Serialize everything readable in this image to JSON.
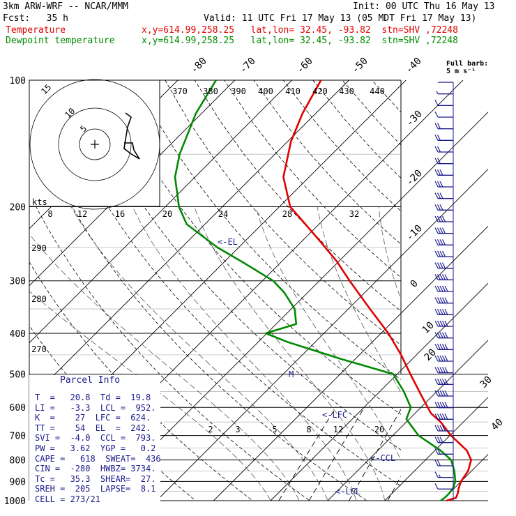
{
  "header": {
    "model": "3km ARW-WRF -- NCAR/MMM",
    "init": "Init: 00 UTC Thu 16 May 13",
    "fcst": "Fcst:   35 h",
    "valid": "Valid: 11 UTC Fri 17 May 13 (05 MDT Fri 17 May 13)",
    "temp_label": "Temperature",
    "temp_info": "x,y=614.99,258.25   lat,lon= 32.45, -93.82  stn=SHV ,72248",
    "dew_label": "Dewpoint temperature",
    "dew_info": "x,y=614.99,258.25   lat,lon= 32.45, -93.82  stn=SHV ,72248"
  },
  "parcel_info": {
    "title": "Parcel Info",
    "rows": [
      "T  =   20.8  Td =  19.8",
      "LI =   -3.3  LCL =  952.",
      "K  =    27  LFC =  624.",
      "TT =    54  EL  =  242.",
      "SVI =  -4.0  CCL =  793.",
      "PW =   3.62  YGP =   0.2",
      "CAPE =   618  SWEAT=  436",
      "CIN =  -280  HWBZ= 3734.",
      "Tc =   35.3  SHEAR=  27.",
      "SREH =  205  LAPSE=  8.1",
      "CELL = 273/21"
    ]
  },
  "barb_legend": "Full barb:\n5 m s⁻¹",
  "hodograph": {
    "units": "kts",
    "ring_labels": [
      "5",
      "10",
      "15"
    ],
    "speed_labels": [
      "8",
      "12",
      "16",
      "20",
      "24",
      "28",
      "32"
    ]
  },
  "chart_data": {
    "type": "skew-t",
    "pressure_levels": [
      100,
      200,
      300,
      400,
      500,
      600,
      700,
      800,
      900,
      1000
    ],
    "isotherm_labels": [
      "-80",
      "-70",
      "-60",
      "-50",
      "-40",
      "-30",
      "-20",
      "-10",
      "0",
      "10",
      "20",
      "30",
      "40"
    ],
    "isotherm_values": [
      -80,
      -70,
      -60,
      -50,
      -40,
      -30,
      -20,
      -10,
      0,
      10,
      20,
      30,
      40
    ],
    "theta_labels": [
      "370",
      "380",
      "390",
      "400",
      "410",
      "420",
      "430",
      "440",
      "290",
      "280",
      "270"
    ],
    "mixing_ratio_labels": [
      "2",
      "3",
      "5",
      "8",
      "12",
      "20"
    ],
    "annotations": {
      "el": "<-EL",
      "lfc": "<-LFC",
      "ccl": "<-CCL",
      "lcl": "<-LCL",
      "mark": "M"
    },
    "series": [
      {
        "name": "Temperature",
        "color": "#e00000",
        "p": [
          1000,
          985,
          960,
          935,
          900,
          850,
          800,
          760,
          700,
          650,
          620,
          560,
          500,
          450,
          400,
          350,
          300,
          270,
          240,
          220,
          200,
          170,
          140,
          120,
          100
        ],
        "t": [
          20.8,
          22.0,
          21.5,
          20.8,
          20.0,
          19.4,
          18.0,
          15.6,
          10.2,
          6.0,
          2.8,
          -2.2,
          -7.7,
          -12.7,
          -18.7,
          -26.2,
          -34.7,
          -40.3,
          -47.2,
          -52.4,
          -58.1,
          -64.5,
          -69.4,
          -72.3,
          -74.9
        ]
      },
      {
        "name": "Dewpoint temperature",
        "color": "#008a00",
        "p": [
          1000,
          985,
          960,
          935,
          900,
          850,
          800,
          760,
          700,
          640,
          600,
          550,
          500,
          460,
          420,
          400,
          380,
          350,
          320,
          300,
          270,
          250,
          220,
          200,
          170,
          150,
          120,
          100
        ],
        "t": [
          19.8,
          20.0,
          20.0,
          19.8,
          19.0,
          17.0,
          14.5,
          11.0,
          4.5,
          -0.5,
          -1.8,
          -5.8,
          -10.7,
          -22.6,
          -34.7,
          -40.2,
          -36.5,
          -39.4,
          -44.1,
          -48.1,
          -57.0,
          -63.7,
          -73.2,
          -77.6,
          -83.5,
          -86.7,
          -91.0,
          -93.3
        ]
      }
    ],
    "wind_barb_speeds_ms": [
      2,
      3,
      5,
      7,
      10,
      10,
      10,
      10,
      15,
      15,
      15,
      15,
      20,
      20,
      20,
      20,
      22,
      25,
      25,
      25,
      25,
      25,
      25,
      25,
      25,
      27,
      27,
      27,
      27,
      25,
      20,
      15,
      12,
      10,
      8,
      5
    ],
    "hodograph_path": [
      [
        180,
        162
      ],
      [
        188,
        168
      ],
      [
        183,
        182
      ],
      [
        180,
        200
      ],
      [
        178,
        213
      ],
      [
        187,
        220
      ],
      [
        200,
        228
      ],
      [
        192,
        215
      ],
      [
        190,
        205
      ],
      [
        178,
        205
      ]
    ]
  }
}
